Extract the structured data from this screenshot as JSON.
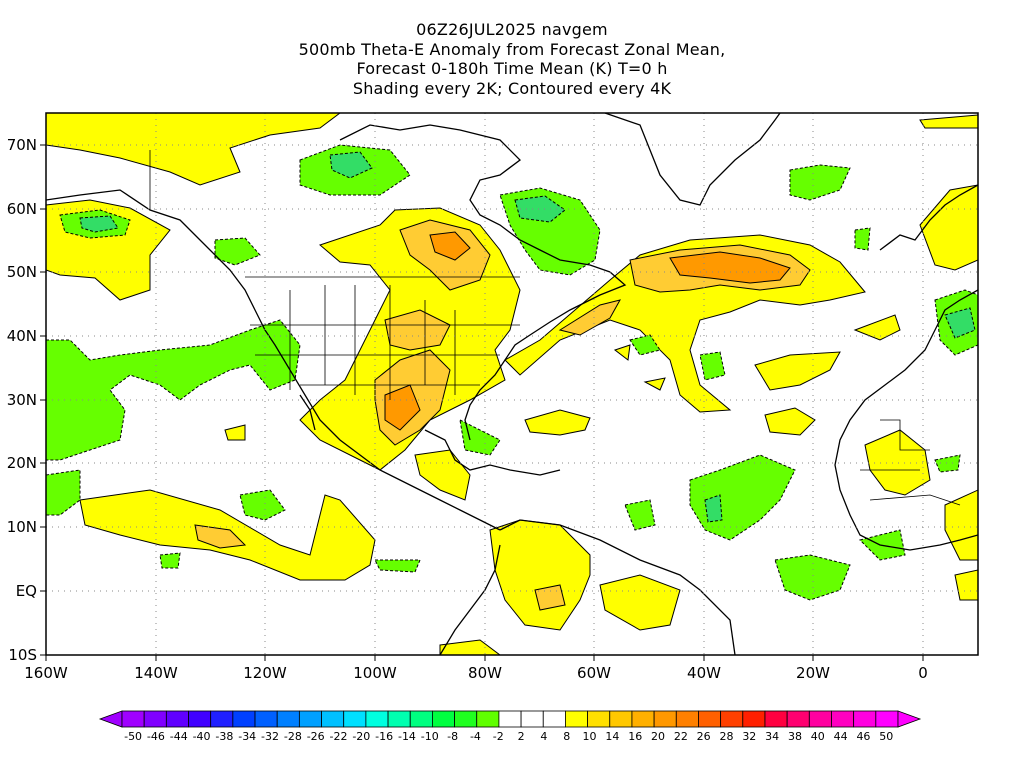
{
  "title_lines": [
    "06Z26JUL2025 navgem",
    "500mb Theta-E Anomaly from Forecast Zonal Mean,",
    "Forecast 0-180h Time Mean (K) T=0 h",
    "Shading every 2K; Contoured every 4K"
  ],
  "map": {
    "projection": "cylindrical equidistant",
    "lon_range": [
      -160,
      10
    ],
    "lat_range": [
      -10,
      75
    ],
    "lat_labels": [
      "10S",
      "EQ",
      "10N",
      "20N",
      "30N",
      "40N",
      "50N",
      "60N",
      "70N"
    ],
    "lon_labels": [
      "160W",
      "140W",
      "120W",
      "100W",
      "80W",
      "60W",
      "40W",
      "20W",
      "0"
    ],
    "grid": "dotted, every 10 degrees"
  },
  "colorbar": {
    "labels": [
      "-50",
      "-46",
      "-44",
      "-40",
      "-38",
      "-34",
      "-32",
      "-28",
      "-26",
      "-22",
      "-20",
      "-16",
      "-14",
      "-10",
      "-8",
      "-4",
      "-2",
      "2",
      "4",
      "8",
      "10",
      "14",
      "16",
      "20",
      "22",
      "26",
      "28",
      "32",
      "34",
      "38",
      "40",
      "44",
      "46",
      "50"
    ],
    "colors": [
      "#a000ff",
      "#8000ff",
      "#6000ff",
      "#4000ff",
      "#2020ff",
      "#0040ff",
      "#0060ff",
      "#0080ff",
      "#00a0ff",
      "#00c0ff",
      "#00e0ff",
      "#00ffe0",
      "#00ffb0",
      "#00ff80",
      "#00ff40",
      "#20ff20",
      "#60ff00",
      "#ffffff",
      "#ffffff",
      "#ffffff",
      "#ffff00",
      "#ffe000",
      "#ffc800",
      "#ffb000",
      "#ff9800",
      "#ff8000",
      "#ff6000",
      "#ff4000",
      "#ff2000",
      "#ff0040",
      "#ff0070",
      "#ff00a0",
      "#ff00c0",
      "#ff00e0",
      "#ff00ff"
    ]
  },
  "colors": {
    "positive_low": "#ffff00",
    "positive_mid": "#ffcc00",
    "positive_high": "#ff9900",
    "negative_low": "#66ff00",
    "negative_mid": "#33dd66"
  }
}
